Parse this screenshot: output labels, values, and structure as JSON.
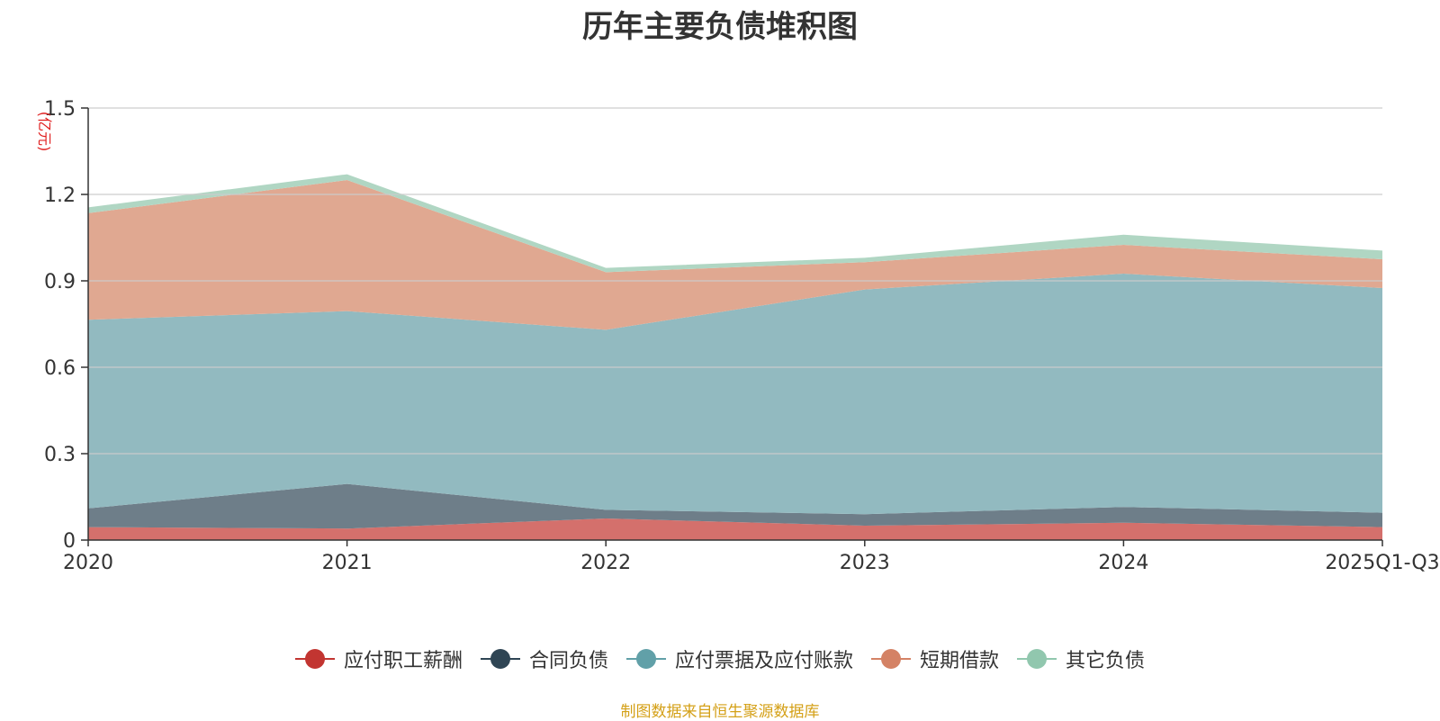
{
  "chart_data": {
    "type": "area",
    "stacked": true,
    "title": "历年主要负债堆积图",
    "ylabel": "(亿元)",
    "xlabel": "",
    "ylim": [
      0,
      1.5
    ],
    "yticks": [
      "0",
      "0.3",
      "0.6",
      "0.9",
      "1.2",
      "1.5"
    ],
    "ytick_values": [
      0,
      0.3,
      0.6,
      0.9,
      1.2,
      1.5
    ],
    "categories": [
      "2020",
      "2021",
      "2022",
      "2023",
      "2024",
      "2025Q1-Q3"
    ],
    "series": [
      {
        "name": "应付职工薪酬",
        "color": "#c23531",
        "fill": "#d4706c",
        "values": [
          0.045,
          0.04,
          0.075,
          0.05,
          0.06,
          0.045
        ]
      },
      {
        "name": "合同负债",
        "color": "#2f4554",
        "fill": "#6e7e89",
        "values": [
          0.065,
          0.155,
          0.03,
          0.04,
          0.055,
          0.05
        ]
      },
      {
        "name": "应付票据及应付账款",
        "color": "#61a0a8",
        "fill": "#92bac0",
        "values": [
          0.655,
          0.6,
          0.625,
          0.78,
          0.81,
          0.78
        ]
      },
      {
        "name": "短期借款",
        "color": "#d48265",
        "fill": "#e0a891",
        "values": [
          0.37,
          0.455,
          0.2,
          0.095,
          0.1,
          0.1
        ]
      },
      {
        "name": "其它负债",
        "color": "#91c7ae",
        "fill": "#b0d6c3",
        "values": [
          0.02,
          0.02,
          0.015,
          0.015,
          0.035,
          0.03
        ]
      }
    ],
    "grid": true,
    "legend_position": "bottom"
  },
  "footer": {
    "source": "制图数据来自恒生聚源数据库",
    "source_color": "#d4a017"
  },
  "colors": {
    "ylabel": "#e02020",
    "axis": "#333333",
    "grid": "#cccccc",
    "title": "#333333"
  }
}
